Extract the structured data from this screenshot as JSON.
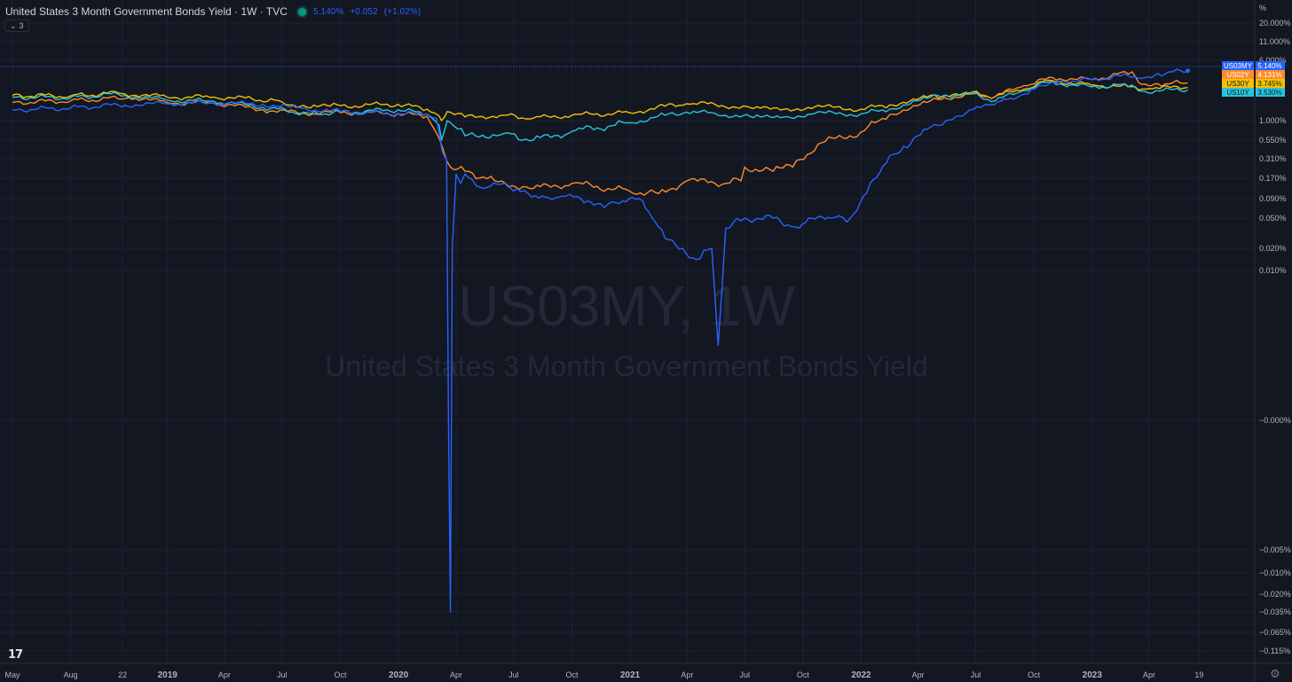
{
  "header": {
    "title": "United States 3 Month Government Bonds Yield · 1W · TVC",
    "last": "5.140%",
    "change": "+0.052",
    "change_pct": "(+1.02%)"
  },
  "collapse_button": {
    "count": "3"
  },
  "logo_text": "17",
  "settings_icon": "gear-icon",
  "colors": {
    "background": "#131722",
    "grid": "#1f2433",
    "axis_text": "#b2b5be",
    "watermark": "#2a2e39"
  },
  "chart_data": {
    "type": "line",
    "watermark_symbol": "US03MY, 1W",
    "watermark_description": "United States 3 Month Government Bonds Yield",
    "y_unit": "%",
    "y_scale": "percent",
    "y_ticks": [
      {
        "label": "20.000%",
        "value": 20
      },
      {
        "label": "11.000%",
        "value": 11
      },
      {
        "label": "6.000%",
        "value": 6
      },
      {
        "label": "1.000%",
        "value": 1
      },
      {
        "label": "0.550%",
        "value": 0.55
      },
      {
        "label": "0.310%",
        "value": 0.31
      },
      {
        "label": "0.170%",
        "value": 0.17
      },
      {
        "label": "0.090%",
        "value": 0.09
      },
      {
        "label": "0.050%",
        "value": 0.05
      },
      {
        "label": "0.020%",
        "value": 0.02
      },
      {
        "label": "0.010%",
        "value": 0.01
      },
      {
        "label": "−0.000%",
        "value": 0
      },
      {
        "label": "−0.005%",
        "value": -0.005
      },
      {
        "label": "−0.010%",
        "value": -0.01
      },
      {
        "label": "−0.020%",
        "value": -0.02
      },
      {
        "label": "−0.035%",
        "value": -0.035
      },
      {
        "label": "−0.065%",
        "value": -0.065
      },
      {
        "label": "−0.115%",
        "value": -0.115
      }
    ],
    "x_ticks": [
      {
        "label": "May",
        "date": "2018-05-01"
      },
      {
        "label": "Aug",
        "date": "2018-08-01"
      },
      {
        "label": "22",
        "date": "2018-10-22"
      },
      {
        "label": "2019",
        "date": "2019-01-01"
      },
      {
        "label": "Apr",
        "date": "2019-04-01"
      },
      {
        "label": "Jul",
        "date": "2019-07-01"
      },
      {
        "label": "Oct",
        "date": "2019-10-01"
      },
      {
        "label": "2020",
        "date": "2020-01-01"
      },
      {
        "label": "Apr",
        "date": "2020-04-01"
      },
      {
        "label": "Jul",
        "date": "2020-07-01"
      },
      {
        "label": "Oct",
        "date": "2020-10-01"
      },
      {
        "label": "2021",
        "date": "2021-01-01"
      },
      {
        "label": "Apr",
        "date": "2021-04-01"
      },
      {
        "label": "Jul",
        "date": "2021-07-01"
      },
      {
        "label": "Oct",
        "date": "2021-10-01"
      },
      {
        "label": "2022",
        "date": "2022-01-01"
      },
      {
        "label": "Apr",
        "date": "2022-04-01"
      },
      {
        "label": "Jul",
        "date": "2022-07-01"
      },
      {
        "label": "Oct",
        "date": "2022-10-01"
      },
      {
        "label": "2023",
        "date": "2023-01-01"
      },
      {
        "label": "Apr",
        "date": "2023-04-01"
      },
      {
        "label": "19",
        "date": "2023-06-19"
      }
    ],
    "series": [
      {
        "name": "US30Y",
        "color": "#f5c000",
        "last_label": "3.745%",
        "last": 3.745,
        "points": [
          [
            "2018-05-01",
            3.1
          ],
          [
            "2018-08-01",
            3.05
          ],
          [
            "2018-10-15",
            3.3
          ],
          [
            "2018-12-31",
            2.95
          ],
          [
            "2019-03-15",
            2.95
          ],
          [
            "2019-05-15",
            2.8
          ],
          [
            "2019-07-01",
            2.55
          ],
          [
            "2019-08-15",
            2.05
          ],
          [
            "2019-09-15",
            2.2
          ],
          [
            "2019-12-31",
            2.35
          ],
          [
            "2020-02-15",
            1.95
          ],
          [
            "2020-03-05",
            1.4
          ],
          [
            "2020-03-09",
            1.0
          ],
          [
            "2020-03-18",
            1.75
          ],
          [
            "2020-04-15",
            1.3
          ],
          [
            "2020-06-15",
            1.45
          ],
          [
            "2020-08-01",
            1.2
          ],
          [
            "2020-10-01",
            1.45
          ],
          [
            "2020-12-31",
            1.65
          ],
          [
            "2021-02-25",
            2.2
          ],
          [
            "2021-03-31",
            2.4
          ],
          [
            "2021-05-15",
            2.35
          ],
          [
            "2021-07-15",
            2.0
          ],
          [
            "2021-09-01",
            1.95
          ],
          [
            "2021-10-20",
            2.15
          ],
          [
            "2021-12-31",
            1.95
          ],
          [
            "2022-02-15",
            2.3
          ],
          [
            "2022-04-15",
            2.95
          ],
          [
            "2022-05-15",
            3.1
          ],
          [
            "2022-06-15",
            3.35
          ],
          [
            "2022-08-01",
            3.0
          ],
          [
            "2022-09-15",
            3.6
          ],
          [
            "2022-10-25",
            4.35
          ],
          [
            "2022-12-31",
            3.95
          ],
          [
            "2023-02-15",
            3.85
          ],
          [
            "2023-03-10",
            3.8
          ],
          [
            "2023-04-01",
            3.65
          ],
          [
            "2023-06-01",
            3.745
          ]
        ]
      },
      {
        "name": "US02Y",
        "color": "#ff8b29",
        "last_label": "4.131%",
        "last": 4.131,
        "points": [
          [
            "2018-05-01",
            2.5
          ],
          [
            "2018-08-01",
            2.65
          ],
          [
            "2018-11-01",
            2.9
          ],
          [
            "2018-12-31",
            2.5
          ],
          [
            "2019-03-15",
            2.45
          ],
          [
            "2019-06-01",
            1.9
          ],
          [
            "2019-08-01",
            1.6
          ],
          [
            "2019-09-15",
            1.7
          ],
          [
            "2019-12-31",
            1.58
          ],
          [
            "2020-02-15",
            1.35
          ],
          [
            "2020-03-05",
            0.6
          ],
          [
            "2020-03-23",
            0.25
          ],
          [
            "2020-04-15",
            0.22
          ],
          [
            "2020-06-01",
            0.16
          ],
          [
            "2020-08-01",
            0.13
          ],
          [
            "2020-10-01",
            0.15
          ],
          [
            "2020-12-31",
            0.12
          ],
          [
            "2021-02-15",
            0.11
          ],
          [
            "2021-04-01",
            0.16
          ],
          [
            "2021-05-15",
            0.15
          ],
          [
            "2021-06-25",
            0.16
          ],
          [
            "2021-07-01",
            0.25
          ],
          [
            "2021-08-15",
            0.22
          ],
          [
            "2021-09-15",
            0.25
          ],
          [
            "2021-10-25",
            0.5
          ],
          [
            "2021-12-31",
            0.73
          ],
          [
            "2022-02-15",
            1.5
          ],
          [
            "2022-04-15",
            2.5
          ],
          [
            "2022-06-15",
            3.2
          ],
          [
            "2022-08-01",
            3.0
          ],
          [
            "2022-09-15",
            3.9
          ],
          [
            "2022-10-31",
            4.55
          ],
          [
            "2022-12-31",
            4.4
          ],
          [
            "2023-03-05",
            5.05
          ],
          [
            "2023-03-20",
            4.0
          ],
          [
            "2023-04-15",
            4.05
          ],
          [
            "2023-06-01",
            4.131
          ]
        ]
      },
      {
        "name": "US10Y",
        "color": "#26c6da",
        "last_label": "3.530%",
        "last": 3.53,
        "points": [
          [
            "2018-05-01",
            2.95
          ],
          [
            "2018-08-01",
            2.9
          ],
          [
            "2018-10-15",
            3.2
          ],
          [
            "2018-12-31",
            2.7
          ],
          [
            "2019-03-15",
            2.6
          ],
          [
            "2019-06-01",
            2.1
          ],
          [
            "2019-08-15",
            1.55
          ],
          [
            "2019-10-01",
            1.7
          ],
          [
            "2019-12-31",
            1.9
          ],
          [
            "2020-02-15",
            1.55
          ],
          [
            "2020-03-05",
            0.9
          ],
          [
            "2020-03-09",
            0.55
          ],
          [
            "2020-03-18",
            1.0
          ],
          [
            "2020-04-15",
            0.65
          ],
          [
            "2020-06-15",
            0.7
          ],
          [
            "2020-08-01",
            0.55
          ],
          [
            "2020-10-01",
            0.75
          ],
          [
            "2020-12-31",
            0.95
          ],
          [
            "2021-02-25",
            1.45
          ],
          [
            "2021-03-31",
            1.7
          ],
          [
            "2021-05-15",
            1.6
          ],
          [
            "2021-07-15",
            1.25
          ],
          [
            "2021-09-01",
            1.3
          ],
          [
            "2021-10-20",
            1.6
          ],
          [
            "2021-12-31",
            1.55
          ],
          [
            "2022-02-15",
            1.95
          ],
          [
            "2022-04-15",
            2.85
          ],
          [
            "2022-06-15",
            3.3
          ],
          [
            "2022-08-01",
            2.65
          ],
          [
            "2022-09-15",
            3.5
          ],
          [
            "2022-10-25",
            4.2
          ],
          [
            "2022-12-31",
            3.8
          ],
          [
            "2023-03-05",
            3.95
          ],
          [
            "2023-03-20",
            3.45
          ],
          [
            "2023-06-01",
            3.53
          ]
        ]
      },
      {
        "name": "US03MY",
        "color": "#2962ff",
        "last_label": "5.140%",
        "last": 5.14,
        "points": [
          [
            "2018-05-01",
            1.9
          ],
          [
            "2018-08-01",
            2.05
          ],
          [
            "2018-10-15",
            2.3
          ],
          [
            "2018-12-31",
            2.4
          ],
          [
            "2019-03-15",
            2.45
          ],
          [
            "2019-06-01",
            2.35
          ],
          [
            "2019-07-15",
            2.1
          ],
          [
            "2019-10-01",
            1.75
          ],
          [
            "2019-12-31",
            1.55
          ],
          [
            "2020-02-15",
            1.55
          ],
          [
            "2020-03-01",
            1.2
          ],
          [
            "2020-03-10",
            0.4
          ],
          [
            "2020-03-17",
            0.3
          ],
          [
            "2020-03-20",
            0
          ],
          [
            "2020-03-23",
            -0.035
          ],
          [
            "2020-03-26",
            0.02
          ],
          [
            "2020-04-01",
            0.2
          ],
          [
            "2020-04-08",
            0.15
          ],
          [
            "2020-04-15",
            0.2
          ],
          [
            "2020-05-15",
            0.13
          ],
          [
            "2020-06-15",
            0.15
          ],
          [
            "2020-07-01",
            0.12
          ],
          [
            "2020-08-15",
            0.1
          ],
          [
            "2020-09-15",
            0.1
          ],
          [
            "2020-10-15",
            0.09
          ],
          [
            "2020-11-15",
            0.08
          ],
          [
            "2020-12-15",
            0.08
          ],
          [
            "2021-01-15",
            0.09
          ],
          [
            "2021-02-05",
            0.05
          ],
          [
            "2021-02-25",
            0.03
          ],
          [
            "2021-03-25",
            0.02
          ],
          [
            "2021-04-15",
            0.015
          ],
          [
            "2021-05-10",
            0.02
          ],
          [
            "2021-05-20",
            0.005
          ],
          [
            "2021-06-01",
            0.04
          ],
          [
            "2021-07-01",
            0.05
          ],
          [
            "2021-08-15",
            0.05
          ],
          [
            "2021-09-25",
            0.04
          ],
          [
            "2021-10-15",
            0.05
          ],
          [
            "2021-11-15",
            0.05
          ],
          [
            "2021-12-15",
            0.05
          ],
          [
            "2022-01-15",
            0.15
          ],
          [
            "2022-02-15",
            0.35
          ],
          [
            "2022-03-15",
            0.45
          ],
          [
            "2022-04-15",
            0.8
          ],
          [
            "2022-05-15",
            1.0
          ],
          [
            "2022-06-15",
            1.6
          ],
          [
            "2022-07-15",
            2.3
          ],
          [
            "2022-08-15",
            2.8
          ],
          [
            "2022-09-15",
            3.2
          ],
          [
            "2022-10-15",
            3.9
          ],
          [
            "2022-11-15",
            4.3
          ],
          [
            "2022-12-31",
            4.4
          ],
          [
            "2023-02-15",
            4.7
          ],
          [
            "2023-03-20",
            4.5
          ],
          [
            "2023-04-15",
            4.9
          ],
          [
            "2023-06-01",
            5.14
          ]
        ]
      }
    ]
  }
}
